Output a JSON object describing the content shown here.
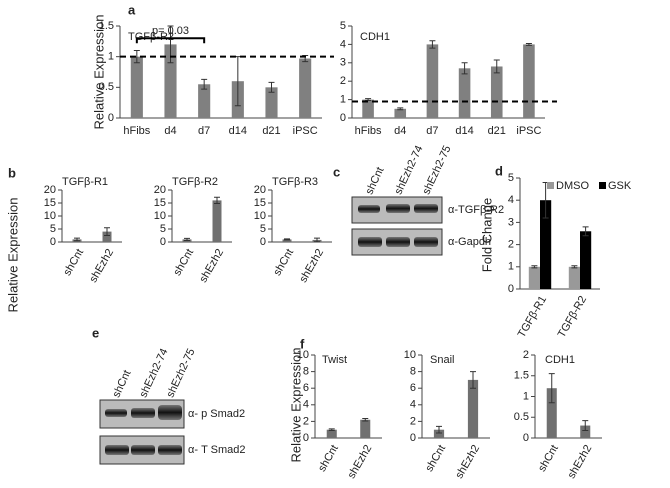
{
  "chart_data": [
    {
      "type": "bar",
      "panel": "a",
      "ylabel": "Relative Expression",
      "title": "TGFβ-R2",
      "categories": [
        "hFibs",
        "d4",
        "d7",
        "d14",
        "d21",
        "iPSC"
      ],
      "values": [
        1.0,
        1.2,
        0.55,
        0.6,
        0.5,
        0.97
      ],
      "errors": [
        0.1,
        0.3,
        0.08,
        0.4,
        0.08,
        0.05
      ],
      "color": "#808080",
      "ylim": [
        0,
        1.5
      ],
      "yticks": [
        0,
        0.5,
        1,
        1.5
      ],
      "reference_line": 1,
      "annotation": "p= 0.03"
    },
    {
      "type": "bar",
      "title": "CDH1",
      "categories": [
        "hFibs",
        "d4",
        "d7",
        "d14",
        "d21",
        "iPSC"
      ],
      "values": [
        1.0,
        0.5,
        4.0,
        2.7,
        2.8,
        4.0
      ],
      "errors": [
        0.05,
        0.05,
        0.2,
        0.3,
        0.35,
        0.05
      ],
      "color": "#808080",
      "ylim": [
        0,
        5
      ],
      "yticks": [
        0,
        1,
        2,
        3,
        4,
        5
      ],
      "reference_line": 0.9
    },
    {
      "type": "bar",
      "panel": "b",
      "ylabel": "Relative Expression",
      "title": "TGFβ-R1",
      "categories": [
        "shCnt",
        "shEzh2"
      ],
      "values": [
        1,
        4
      ],
      "errors": [
        0.5,
        1.5
      ],
      "color": "#707070",
      "ylim": [
        0,
        20
      ],
      "yticks": [
        0,
        5,
        10,
        15,
        20
      ]
    },
    {
      "type": "bar",
      "title": "TGFβ-R2",
      "categories": [
        "shCnt",
        "shEzh2"
      ],
      "values": [
        1,
        16
      ],
      "errors": [
        0.4,
        1.2
      ],
      "color": "#707070",
      "ylim": [
        0,
        20
      ],
      "yticks": [
        0,
        5,
        10,
        15,
        20
      ]
    },
    {
      "type": "bar",
      "title": "TGFβ-R3",
      "categories": [
        "shCnt",
        "shEzh2"
      ],
      "values": [
        1,
        0.8
      ],
      "errors": [
        0.2,
        0.7
      ],
      "color": "#707070",
      "ylim": [
        0,
        20
      ],
      "yticks": [
        0,
        5,
        10,
        15,
        20
      ]
    },
    {
      "type": "grouped-bar",
      "panel": "d",
      "ylabel": "Fold Change",
      "categories": [
        "TGFβ-R1",
        "TGFβ-R2"
      ],
      "series": [
        {
          "name": "DMSO",
          "color": "#999999",
          "values": [
            1,
            1
          ],
          "errors": [
            0.05,
            0.05
          ]
        },
        {
          "name": "GSK",
          "color": "#000000",
          "values": [
            4,
            2.6
          ],
          "errors": [
            0.8,
            0.2
          ]
        }
      ],
      "ylim": [
        0,
        5
      ],
      "yticks": [
        0,
        1,
        2,
        3,
        4,
        5
      ]
    },
    {
      "type": "bar",
      "panel": "f",
      "ylabel": "Relative Expression",
      "title": "Twist",
      "categories": [
        "shCnt",
        "shEzh2"
      ],
      "values": [
        1,
        2.2
      ],
      "errors": [
        0.1,
        0.15
      ],
      "color": "#707070",
      "ylim": [
        0,
        10
      ],
      "yticks": [
        0,
        2,
        4,
        6,
        8,
        10
      ]
    },
    {
      "type": "bar",
      "title": "Snail",
      "categories": [
        "shCnt",
        "shEzh2"
      ],
      "values": [
        1,
        7
      ],
      "errors": [
        0.4,
        1.0
      ],
      "color": "#707070",
      "ylim": [
        0,
        10
      ],
      "yticks": [
        0,
        2,
        4,
        6,
        8,
        10
      ]
    },
    {
      "type": "bar",
      "title": "CDH1",
      "categories": [
        "shCnt",
        "shEzh2"
      ],
      "values": [
        1.2,
        0.3
      ],
      "errors": [
        0.35,
        0.12
      ],
      "color": "#707070",
      "ylim": [
        0,
        2
      ],
      "yticks": [
        0,
        0.5,
        1,
        1.5,
        2
      ]
    }
  ],
  "blots": [
    {
      "panel": "c",
      "lanes": [
        "shCnt",
        "shEzh2-74",
        "shEzh2-75"
      ],
      "rows": [
        "α-TGFβ-R2",
        "α-Gapdh"
      ]
    },
    {
      "panel": "e",
      "lanes": [
        "shCnt",
        "shEzh2-74",
        "shEzh2-75"
      ],
      "rows": [
        "α- p Smad2",
        "α- T Smad2"
      ]
    }
  ]
}
